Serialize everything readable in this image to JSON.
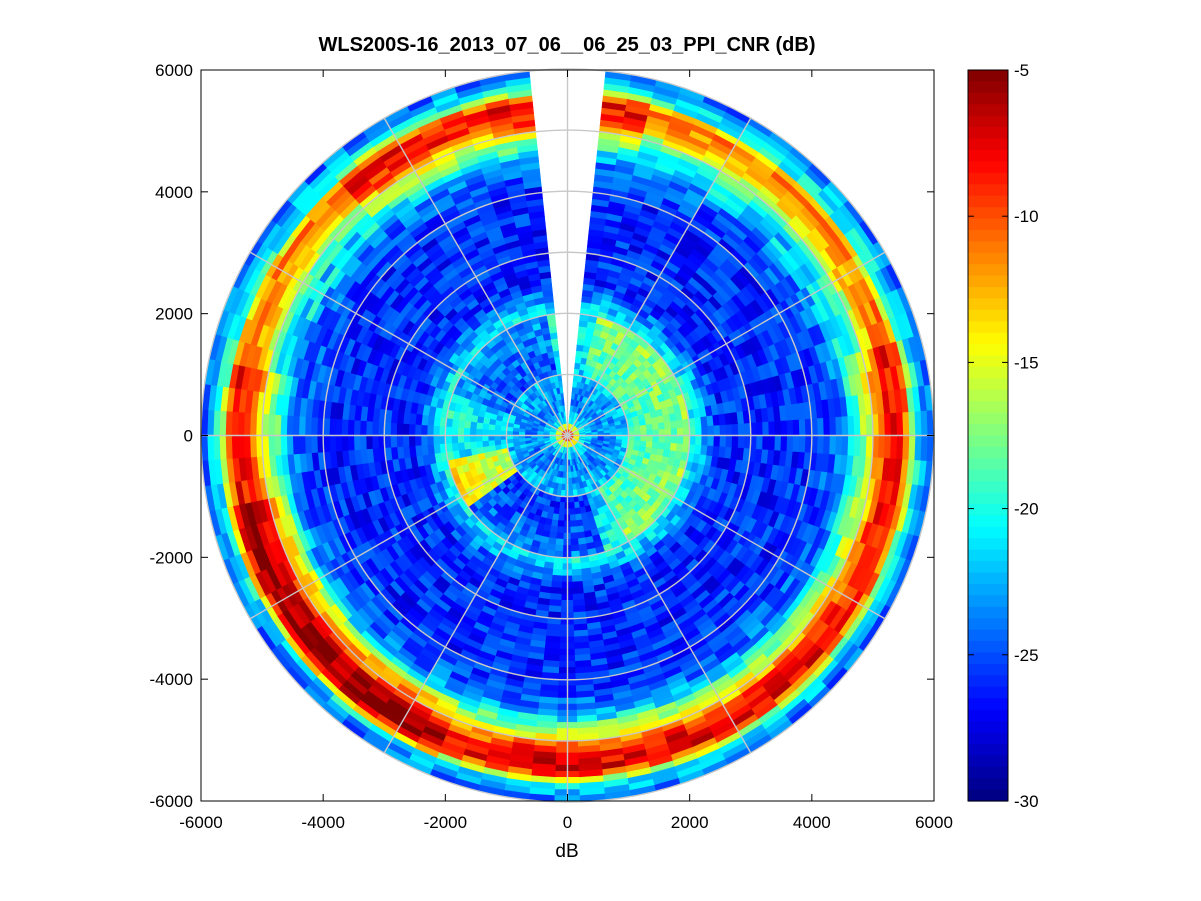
{
  "chart_data": {
    "type": "heatmap",
    "subtype": "polar-ppi",
    "title": "WLS200S-16_2013_07_06__06_25_03_PPI_CNR (dB)",
    "xlabel": "dB",
    "ylabel": "",
    "xlim": [
      -6000,
      6000
    ],
    "ylim": [
      -6000,
      6000
    ],
    "xticks": [
      -6000,
      -4000,
      -2000,
      0,
      2000,
      4000,
      6000
    ],
    "yticks": [
      -6000,
      -4000,
      -2000,
      0,
      2000,
      4000,
      6000
    ],
    "xtick_labels": [
      "-6000",
      "-4000",
      "-2000",
      "0",
      "2000",
      "4000",
      "6000"
    ],
    "ytick_labels": [
      "6000",
      "4000",
      "2000",
      "0",
      "-2000",
      "-4000",
      "-6000"
    ],
    "max_range": 6000,
    "range_rings": [
      1000,
      2000,
      3000,
      4000,
      5000,
      6000
    ],
    "spoke_angles_deg": [
      0,
      30,
      60,
      90,
      120,
      150,
      180,
      210,
      240,
      270,
      300,
      330
    ],
    "missing_sector_deg": [
      84,
      96
    ],
    "colorbar": {
      "min": -30,
      "max": -5,
      "ticks": [
        -5,
        -10,
        -15,
        -20,
        -25,
        -30
      ],
      "tick_labels": [
        "-5",
        "-10",
        "-15",
        "-20",
        "-25",
        "-30"
      ],
      "colormap": "jet",
      "levels": 64
    },
    "profile_range_m": [
      0,
      250,
      500,
      1000,
      1500,
      2000,
      2500,
      3000,
      4000,
      4500,
      4800,
      5000,
      5200,
      5500,
      5700,
      6000
    ],
    "profile_cnr_db": [
      -6,
      -21,
      -24,
      -22,
      -21,
      -20,
      -26,
      -26,
      -26,
      -24,
      -18,
      -14,
      -9,
      -8,
      -20,
      -25
    ]
  }
}
